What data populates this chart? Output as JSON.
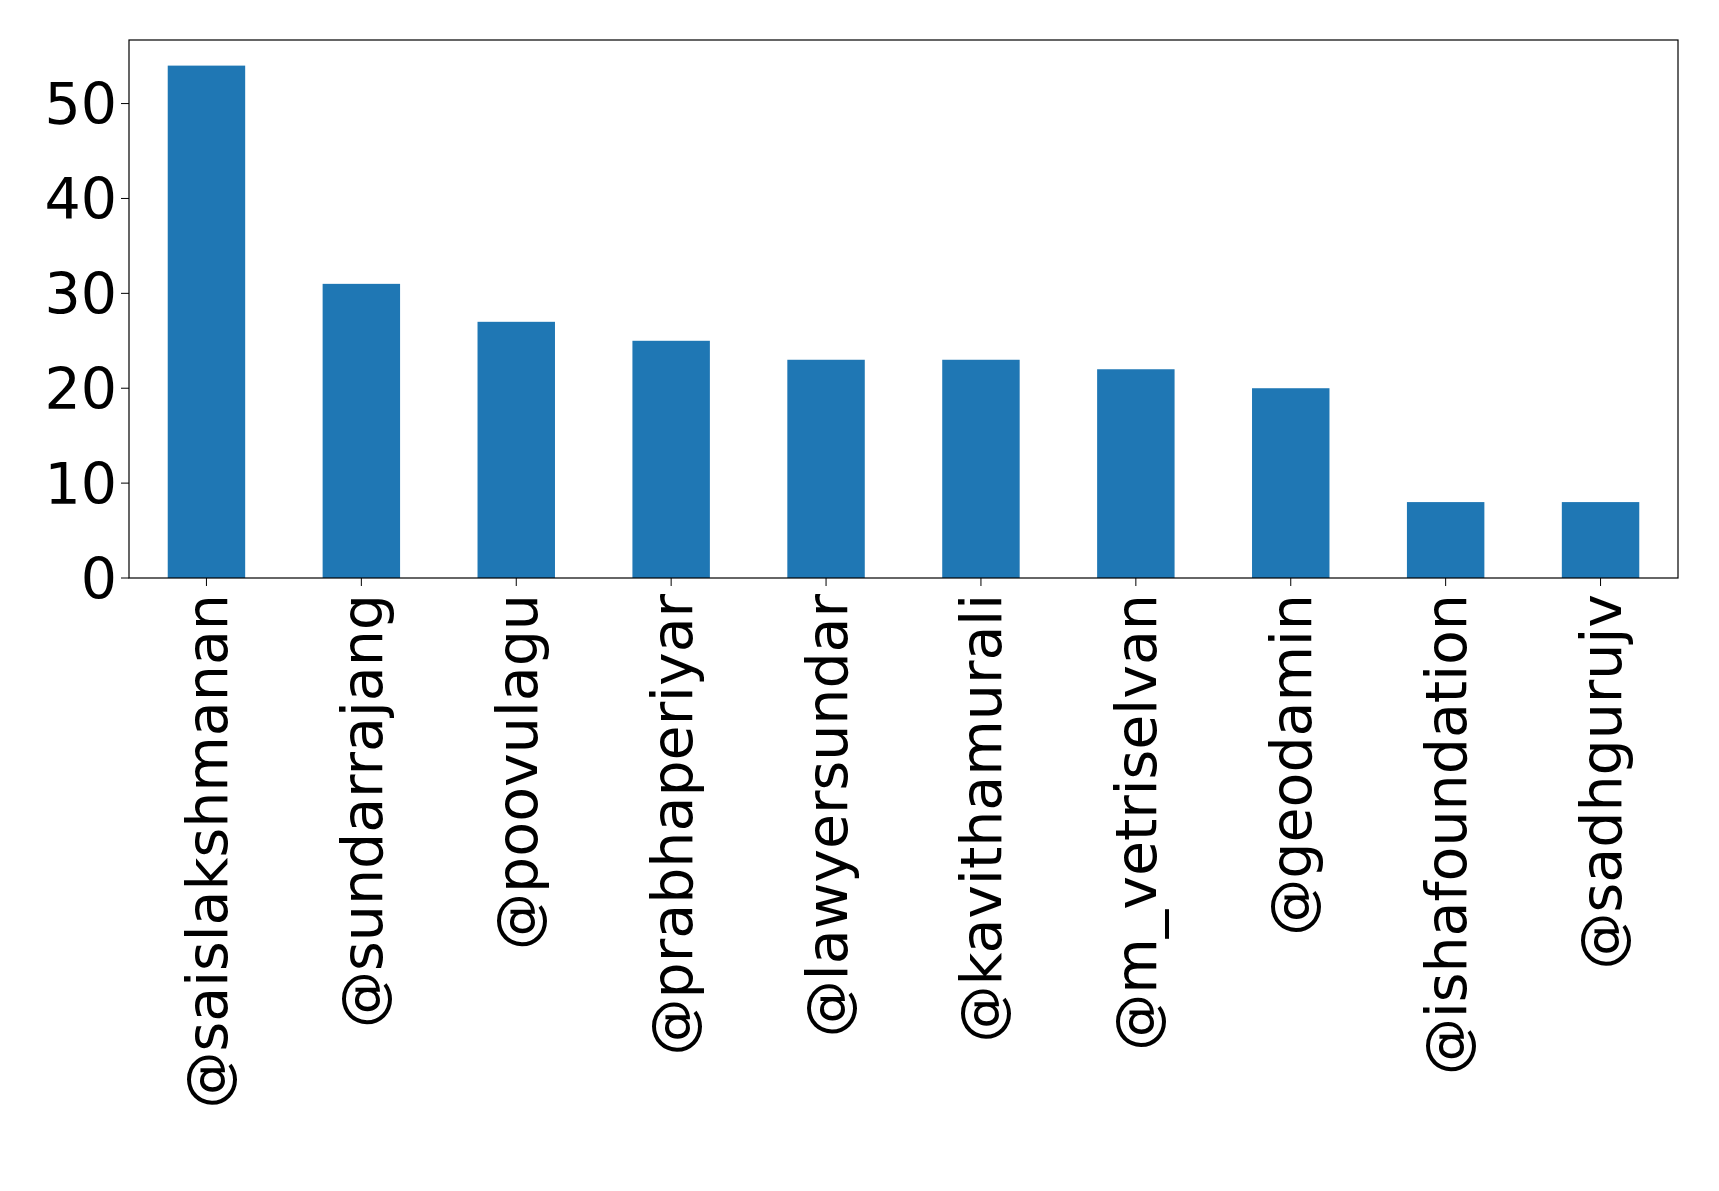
{
  "chart_data": {
    "type": "bar",
    "categories": [
      "@saislakshmanan",
      "@sundarrajang",
      "@poovulagu",
      "@prabhaperiyar",
      "@lawyersundar",
      "@kavithamurali",
      "@m_vetriselvan",
      "@geodamin",
      "@ishafoundation",
      "@sadhgurujv"
    ],
    "values": [
      54,
      31,
      27,
      25,
      23,
      23,
      22,
      20,
      8,
      8
    ],
    "color": "#1f77b4",
    "ylim": [
      0,
      56.7
    ],
    "yticks": [
      0,
      10,
      20,
      30,
      40,
      50
    ],
    "grid": false
  }
}
